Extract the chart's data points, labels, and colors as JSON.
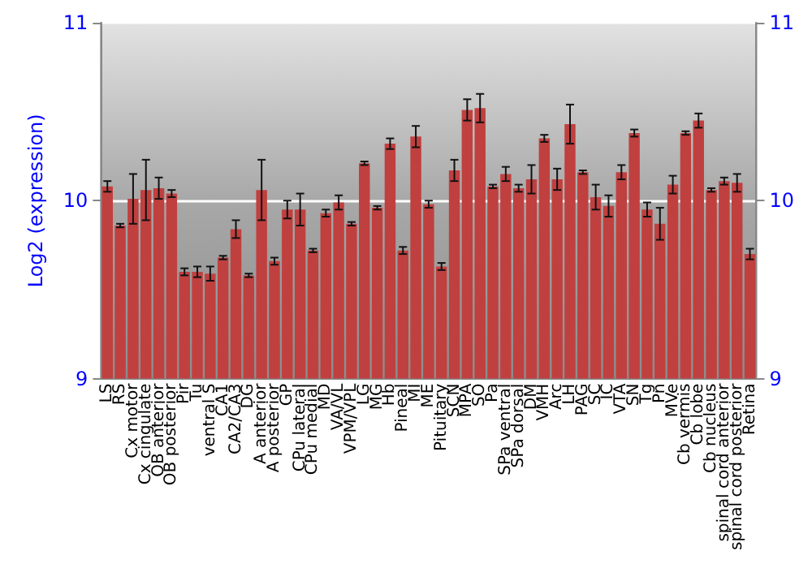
{
  "chart_data": {
    "type": "bar",
    "ylabel": "Log2 (expression)",
    "categories": [
      "LS",
      "RS",
      "Cx motor",
      "Cx cingulate",
      "OB anterior",
      "OB posterior",
      "Pir",
      "Tu",
      "ventral S",
      "CA1",
      "CA2/CA3",
      "DG",
      "A anterior",
      "A posterior",
      "GP",
      "CPu lateral",
      "CPu medial",
      "MD",
      "VA/VL",
      "VPM/VPL",
      "LG",
      "MG",
      "Hb",
      "Pineal",
      "MI",
      "ME",
      "Pituitary",
      "SCN",
      "MPA",
      "SO",
      "Pa",
      "SPa ventral",
      "SPa dorsal",
      "DM",
      "VMH",
      "Arc",
      "LH",
      "PAG",
      "SC",
      "IC",
      "VTA",
      "SN",
      "Tg",
      "Pn",
      "MVe",
      "Cb vermis",
      "Cb lobe",
      "Cb nucleus",
      "spinal cord anterior",
      "spinal cord posterior",
      "Retina"
    ],
    "values": [
      10.08,
      9.86,
      10.01,
      10.06,
      10.07,
      10.04,
      9.6,
      9.6,
      9.59,
      9.68,
      9.84,
      9.58,
      10.06,
      9.66,
      9.95,
      9.95,
      9.72,
      9.93,
      9.99,
      9.87,
      10.21,
      9.96,
      10.32,
      9.72,
      10.36,
      9.98,
      9.63,
      10.17,
      10.51,
      10.52,
      10.08,
      10.15,
      10.07,
      10.12,
      10.35,
      10.12,
      10.43,
      10.16,
      10.02,
      9.97,
      10.16,
      10.38,
      9.95,
      9.87,
      10.09,
      10.38,
      10.45,
      10.06,
      10.11,
      10.1,
      9.7
    ],
    "errors": [
      0.03,
      0.01,
      0.14,
      0.17,
      0.06,
      0.02,
      0.02,
      0.03,
      0.04,
      0.01,
      0.05,
      0.01,
      0.17,
      0.02,
      0.05,
      0.09,
      0.01,
      0.02,
      0.04,
      0.01,
      0.01,
      0.01,
      0.03,
      0.02,
      0.06,
      0.02,
      0.02,
      0.06,
      0.06,
      0.08,
      0.01,
      0.04,
      0.02,
      0.08,
      0.02,
      0.06,
      0.11,
      0.01,
      0.07,
      0.06,
      0.04,
      0.02,
      0.04,
      0.09,
      0.05,
      0.01,
      0.04,
      0.01,
      0.02,
      0.05,
      0.03
    ],
    "color": "#c0403f",
    "ylim": [
      9,
      11
    ],
    "yticks": [
      9,
      10,
      11
    ],
    "y2lim": [
      9,
      11
    ],
    "y2ticks": [
      9,
      10,
      11
    ],
    "grid": "y"
  }
}
